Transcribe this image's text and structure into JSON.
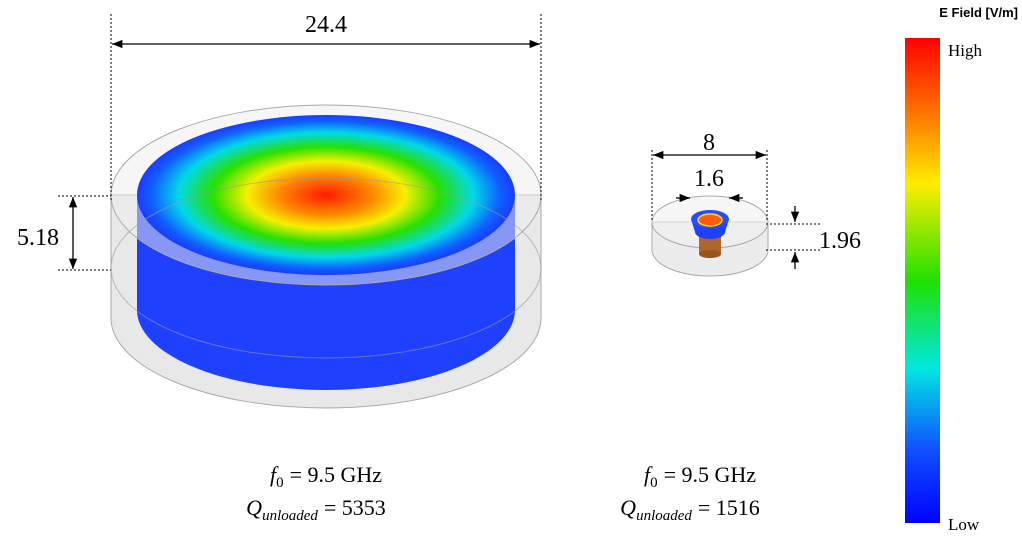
{
  "left_resonator": {
    "diameter_label": "24.4",
    "height_label": "5.18",
    "frequency": {
      "symbol": "f",
      "subscript": "0",
      "relation": "= 9.5 GHz"
    },
    "quality": {
      "symbol": "Q",
      "subscript": "unloaded",
      "relation": "= 5353"
    }
  },
  "right_resonator": {
    "outer_diameter_label": "8",
    "inner_diameter_label": "1.6",
    "height_label": "1.96",
    "frequency": {
      "symbol": "f",
      "subscript": "0",
      "relation": "= 9.5 GHz"
    },
    "quality": {
      "symbol": "Q",
      "subscript": "unloaded",
      "relation": "= 1516"
    }
  },
  "colorbar": {
    "title": "E Field [V/m]",
    "high_label": "High",
    "low_label": "Low"
  }
}
